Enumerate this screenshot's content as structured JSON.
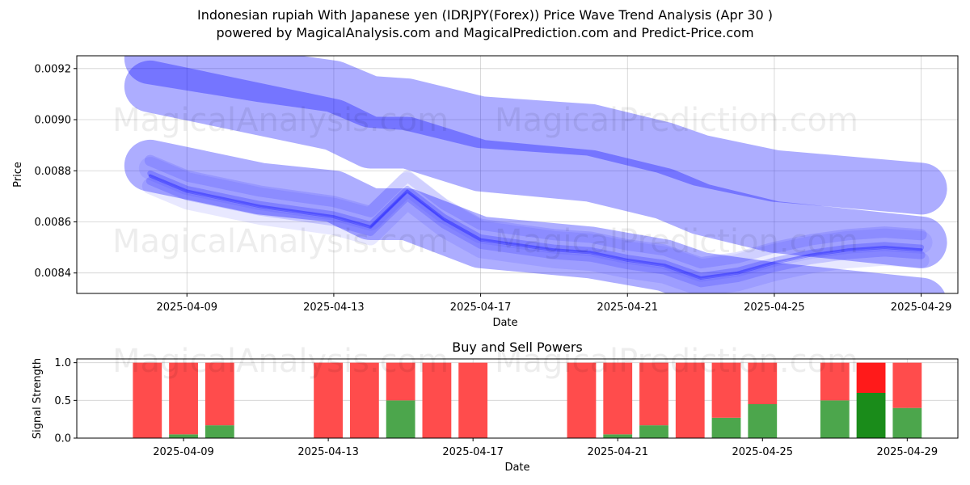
{
  "figure": {
    "title_line1": "Indonesian rupiah With Japanese yen (IDRJPY(Forex)) Price Wave Trend Analysis (Apr 30 )",
    "title_line2": "powered by MagicalAnalysis.com and MagicalPrediction.com and Predict-Price.com",
    "watermarks": [
      "MagicalAnalysis.com",
      "MagicalPrediction.com"
    ]
  },
  "chart_data": [
    {
      "type": "line",
      "xlabel": "Date",
      "ylabel": "Price",
      "ylim": [
        0.00832,
        0.00925
      ],
      "yticks": [
        0.0084,
        0.0086,
        0.0088,
        0.009,
        0.0092
      ],
      "ytick_labels": [
        "0.0084",
        "0.0086",
        "0.0088",
        "0.0090",
        "0.0092"
      ],
      "xlim": [
        "2025-04-06",
        "2025-04-30"
      ],
      "xticks": [
        "2025-04-09",
        "2025-04-13",
        "2025-04-17",
        "2025-04-21",
        "2025-04-25",
        "2025-04-29"
      ],
      "grid": true,
      "color": "#0000ff",
      "bands": [
        {
          "x": [
            "2025-04-08",
            "2025-04-11",
            "2025-04-13",
            "2025-04-14",
            "2025-04-15",
            "2025-04-17",
            "2025-04-20",
            "2025-04-22",
            "2025-04-23",
            "2025-04-25",
            "2025-04-29"
          ],
          "y": [
            0.00913,
            0.00904,
            0.00898,
            0.00891,
            0.00891,
            0.00882,
            0.00878,
            0.00871,
            0.00865,
            0.00858,
            0.00852
          ]
        },
        {
          "x": [
            "2025-04-08",
            "2025-04-11",
            "2025-04-13",
            "2025-04-14",
            "2025-04-15",
            "2025-04-17",
            "2025-04-20",
            "2025-04-22",
            "2025-04-23",
            "2025-04-25",
            "2025-04-29"
          ],
          "y": [
            0.00924,
            0.00917,
            0.00913,
            0.00907,
            0.00906,
            0.00899,
            0.00896,
            0.00889,
            0.00884,
            0.00878,
            0.00873
          ]
        },
        {
          "x": [
            "2025-04-08",
            "2025-04-11",
            "2025-04-13",
            "2025-04-14",
            "2025-04-15",
            "2025-04-17",
            "2025-04-20",
            "2025-04-22",
            "2025-04-23",
            "2025-04-25",
            "2025-04-29"
          ],
          "y": [
            0.00882,
            0.00873,
            0.0087,
            0.00863,
            0.00863,
            0.00852,
            0.00848,
            0.00843,
            0.00838,
            0.00834,
            0.00828
          ]
        }
      ],
      "series": [
        {
          "x": [
            "2025-04-08",
            "2025-04-09",
            "2025-04-10",
            "2025-04-11",
            "2025-04-12",
            "2025-04-13",
            "2025-04-14",
            "2025-04-15",
            "2025-04-16",
            "2025-04-17",
            "2025-04-18",
            "2025-04-19",
            "2025-04-20",
            "2025-04-21",
            "2025-04-22",
            "2025-04-23",
            "2025-04-24",
            "2025-04-25",
            "2025-04-26",
            "2025-04-27",
            "2025-04-28",
            "2025-04-29"
          ],
          "y": [
            0.00878,
            0.00872,
            0.00869,
            0.00866,
            0.00864,
            0.00862,
            0.00858,
            0.00872,
            0.00861,
            0.00853,
            0.00851,
            0.00849,
            0.00848,
            0.00845,
            0.00843,
            0.00838,
            0.0084,
            0.00844,
            0.00847,
            0.00849,
            0.0085,
            0.00849
          ]
        }
      ]
    },
    {
      "type": "bar",
      "title": "Buy and Sell Powers",
      "xlabel": "Date",
      "ylabel": "Signal Strength",
      "ylim": [
        0,
        1.05
      ],
      "yticks": [
        0,
        0.5,
        1
      ],
      "ytick_labels": [
        "0.0",
        "0.5",
        "1.0"
      ],
      "xticks": [
        "2025-04-09",
        "2025-04-13",
        "2025-04-17",
        "2025-04-21",
        "2025-04-25",
        "2025-04-29"
      ],
      "colors": {
        "buy": "#4ca64c",
        "sell": "#ff4c4c",
        "buy_strong": "#1a8c1a",
        "sell_strong": "#ff1a1a"
      },
      "categories": [
        "2025-04-08",
        "2025-04-09",
        "2025-04-10",
        "2025-04-11",
        "2025-04-12",
        "2025-04-13",
        "2025-04-14",
        "2025-04-15",
        "2025-04-16",
        "2025-04-17",
        "2025-04-18",
        "2025-04-19",
        "2025-04-20",
        "2025-04-21",
        "2025-04-22",
        "2025-04-23",
        "2025-04-24",
        "2025-04-25",
        "2025-04-26",
        "2025-04-27",
        "2025-04-28",
        "2025-04-29"
      ],
      "series": [
        {
          "values": [
            0,
            0.05,
            0.17,
            null,
            null,
            0,
            0,
            0.5,
            0,
            0,
            null,
            null,
            0,
            0.05,
            0.17,
            0,
            0.27,
            0.45,
            null,
            0.5,
            0.6,
            0.4
          ]
        },
        {
          "values": [
            1,
            0.95,
            0.83,
            null,
            null,
            1,
            1,
            0.5,
            1,
            1,
            null,
            null,
            1,
            0.95,
            0.83,
            1,
            0.73,
            0.55,
            null,
            0.5,
            0.4,
            0.6
          ]
        }
      ]
    }
  ]
}
